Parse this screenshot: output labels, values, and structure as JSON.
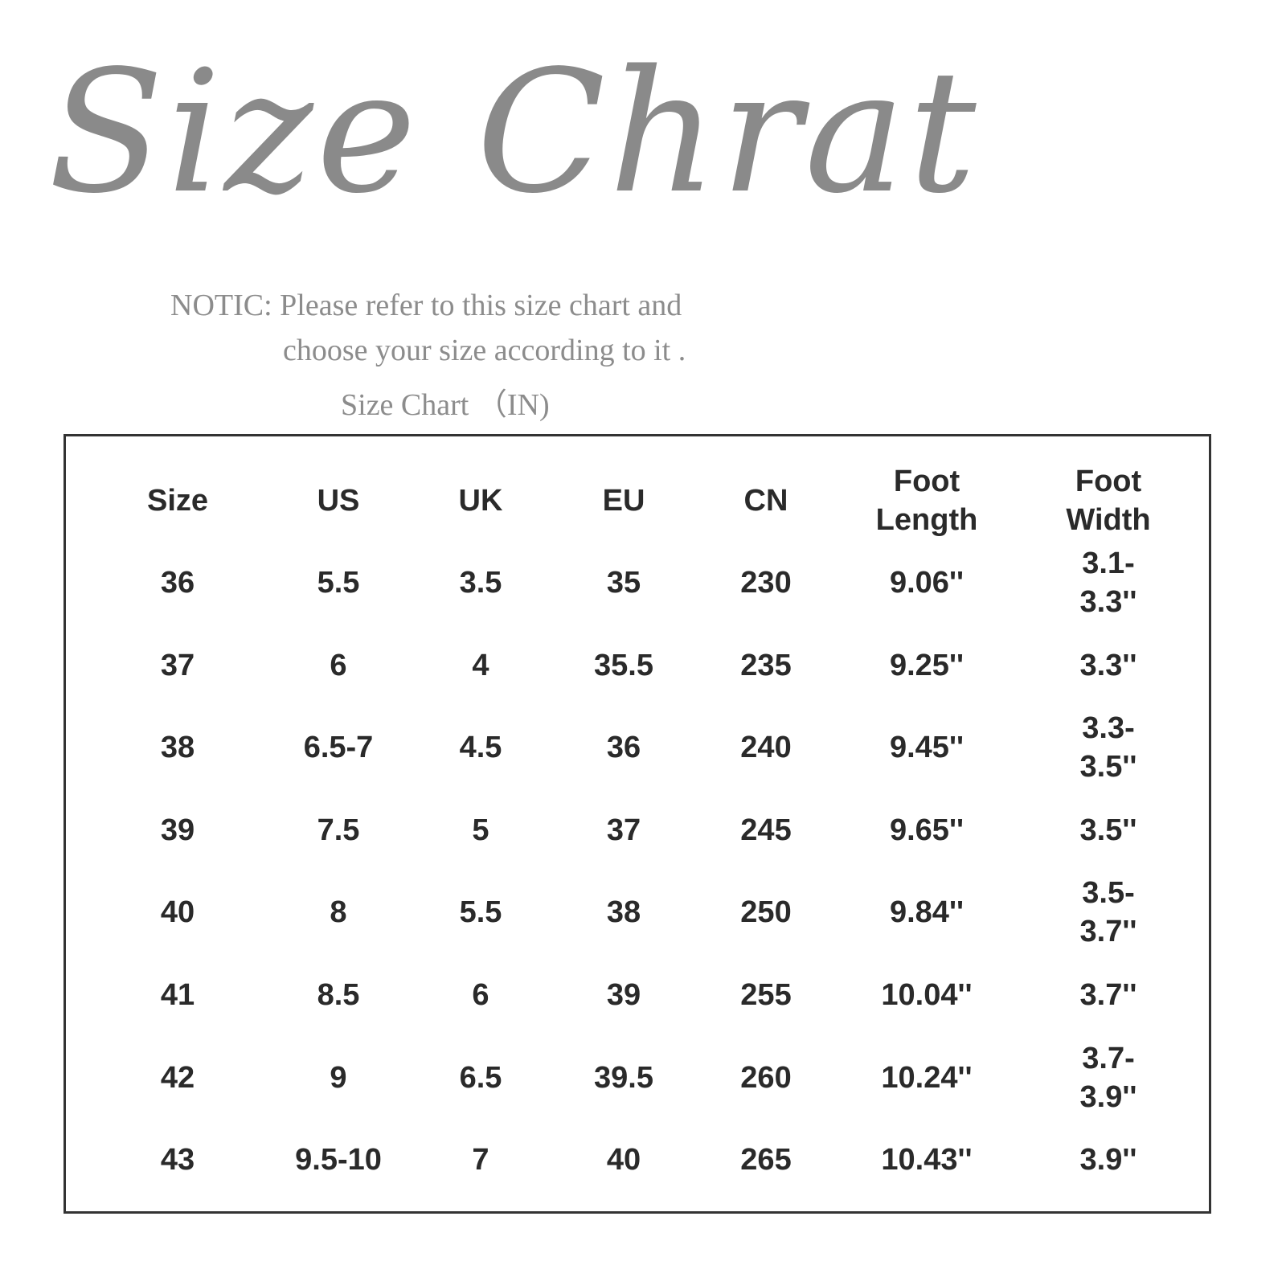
{
  "title": "Size Chrat",
  "notice": {
    "line1": "NOTIC: Please refer to this size chart and",
    "line2": "choose your size according to it .",
    "line3": "Size Chart （IN)"
  },
  "table": {
    "headers": [
      "Size",
      "US",
      "UK",
      "EU",
      "CN",
      "Foot\nLength",
      "Foot\nWidth"
    ],
    "rows": [
      [
        "36",
        "5.5",
        "3.5",
        "35",
        "230",
        "9.06''",
        "3.1-3.3''"
      ],
      [
        "37",
        "6",
        "4",
        "35.5",
        "235",
        "9.25''",
        "3.3''"
      ],
      [
        "38",
        "6.5-7",
        "4.5",
        "36",
        "240",
        "9.45''",
        "3.3-3.5''"
      ],
      [
        "39",
        "7.5",
        "5",
        "37",
        "245",
        "9.65''",
        "3.5''"
      ],
      [
        "40",
        "8",
        "5.5",
        "38",
        "250",
        "9.84''",
        "3.5-3.7''"
      ],
      [
        "41",
        "8.5",
        "6",
        "39",
        "255",
        "10.04''",
        "3.7''"
      ],
      [
        "42",
        "9",
        "6.5",
        "39.5",
        "260",
        "10.24''",
        "3.7-3.9''"
      ],
      [
        "43",
        "9.5-10",
        "7",
        "40",
        "265",
        "10.43''",
        "3.9''"
      ]
    ]
  }
}
